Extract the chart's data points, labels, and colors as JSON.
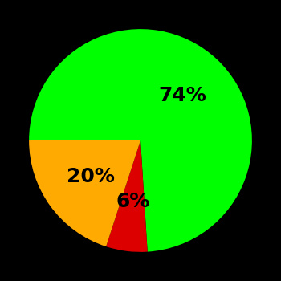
{
  "slices": [
    74,
    20,
    6
  ],
  "colors": [
    "#00ff00",
    "#ffaa00",
    "#dd0000"
  ],
  "labels": [
    "74%",
    "20%",
    "6%"
  ],
  "background_color": "#000000",
  "startangle": 90,
  "label_fontsize": 18,
  "label_fontweight": "bold",
  "label_color": "#000000"
}
